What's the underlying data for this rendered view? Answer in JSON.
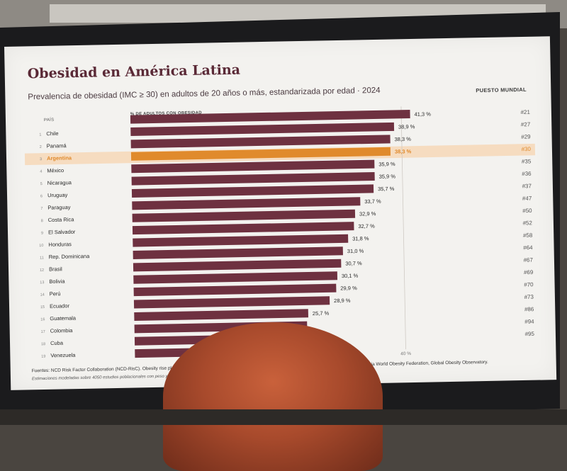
{
  "slide": {
    "title": "Obesidad en América Latina",
    "subtitle": "Prevalencia de obesidad (IMC ≥ 30) en adultos de 20 años o más, estandarizada por edad · 2024",
    "rank_header": "PUESTO MUNDIAL",
    "country_header": "PAÍS",
    "bar_header": "% DE ADULTOS CON OBESIDAD",
    "footer_sources": "Fuentes: NCD Risk Factor Collaboration (NCD-RisC). Obesity rise plateaus in developed nation",
    "footer_sources_right": "Ranking via World Obesity Federation, Global Obesity Observatory.",
    "footer_note": "Estimaciones modeladas sobre 4050 estudios poblacionales con peso y talla medidos, a"
  },
  "colors": {
    "bar": "#6e3140",
    "highlight": "#e08a2c",
    "highlight_band": "#f6dcc0",
    "title": "#5a2936"
  },
  "chart_data": {
    "type": "bar",
    "orientation": "horizontal",
    "highlight_index": 3,
    "xlim": [
      0,
      45
    ],
    "x_ticks": [
      {
        "value": 10,
        "label": "10 %"
      },
      {
        "value": 40,
        "label": "40 %"
      }
    ],
    "grid": "vertical reference line at 40",
    "first_bar_value_label": "41,3 %",
    "first_bar_rank": "#21",
    "first_bar_value": 41.3,
    "rows": [
      {
        "num": "1",
        "country": "Chile",
        "value": 38.9,
        "label": "38,9 %",
        "rank": "#27"
      },
      {
        "num": "2",
        "country": "Panamá",
        "value": 38.3,
        "label": "38,3 %",
        "rank": "#29"
      },
      {
        "num": "3",
        "country": "Argentina",
        "value": 38.3,
        "label": "38,3 %",
        "rank": "#30"
      },
      {
        "num": "4",
        "country": "México",
        "value": 35.9,
        "label": "35,9 %",
        "rank": "#35"
      },
      {
        "num": "5",
        "country": "Nicaragua",
        "value": 35.9,
        "label": "35,9 %",
        "rank": "#36"
      },
      {
        "num": "6",
        "country": "Uruguay",
        "value": 35.7,
        "label": "35,7 %",
        "rank": "#37"
      },
      {
        "num": "7",
        "country": "Paraguay",
        "value": 33.7,
        "label": "33,7 %",
        "rank": "#47"
      },
      {
        "num": "8",
        "country": "Costa Rica",
        "value": 32.9,
        "label": "32,9 %",
        "rank": "#50"
      },
      {
        "num": "9",
        "country": "El Salvador",
        "value": 32.7,
        "label": "32,7 %",
        "rank": "#52"
      },
      {
        "num": "10",
        "country": "Honduras",
        "value": 31.8,
        "label": "31,8 %",
        "rank": "#58"
      },
      {
        "num": "11",
        "country": "Rep. Dominicana",
        "value": 31.0,
        "label": "31,0 %",
        "rank": "#64"
      },
      {
        "num": "12",
        "country": "Brasil",
        "value": 30.7,
        "label": "30,7 %",
        "rank": "#67"
      },
      {
        "num": "13",
        "country": "Bolivia",
        "value": 30.1,
        "label": "30,1 %",
        "rank": "#69"
      },
      {
        "num": "14",
        "country": "Perú",
        "value": 29.9,
        "label": "29,9 %",
        "rank": "#70"
      },
      {
        "num": "15",
        "country": "Ecuador",
        "value": 28.9,
        "label": "28,9 %",
        "rank": "#73"
      },
      {
        "num": "16",
        "country": "Guatemala",
        "value": 25.7,
        "label": "25,7 %",
        "rank": "#86"
      },
      {
        "num": "17",
        "country": "Colombia",
        "value": 25.5,
        "label": "",
        "rank": "#94"
      },
      {
        "num": "18",
        "country": "Cuba",
        "value": 25.0,
        "label": "",
        "rank": "#95"
      },
      {
        "num": "19",
        "country": "Venezuela",
        "value": 24.5,
        "label": "",
        "rank": ""
      }
    ]
  }
}
